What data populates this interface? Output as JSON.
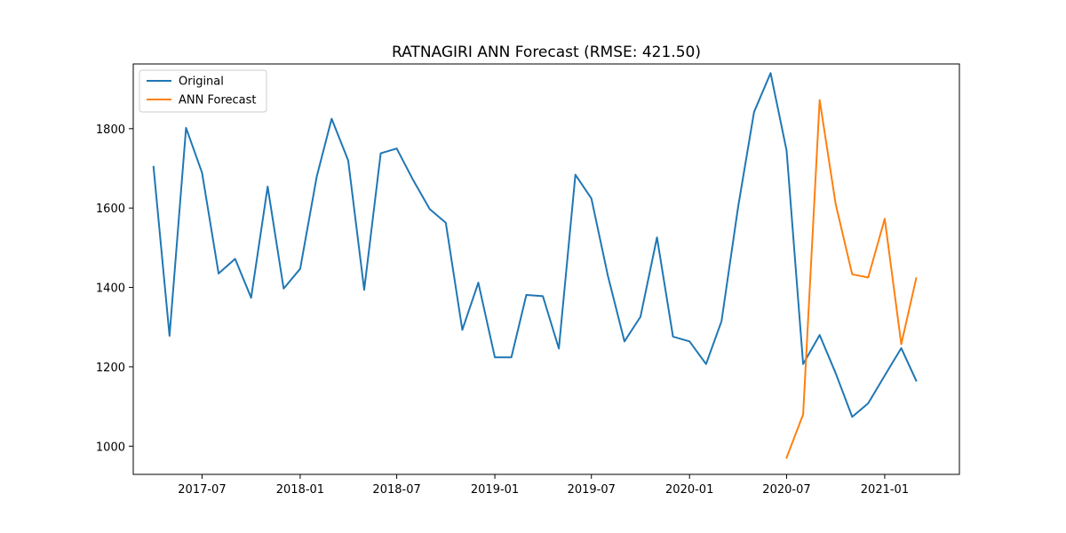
{
  "chart_data": {
    "type": "line",
    "title": "RATNAGIRI ANN Forecast (RMSE: 421.50)",
    "xlabel": "",
    "ylabel": "",
    "x_tick_labels": [
      "2017-07",
      "2018-01",
      "2018-07",
      "2019-01",
      "2019-07",
      "2020-01",
      "2020-07",
      "2021-01"
    ],
    "y_ticks": [
      1000,
      1200,
      1400,
      1600,
      1800
    ],
    "xlim": [
      "2017-02-22",
      "2021-05-21"
    ],
    "ylim": [
      929,
      1963
    ],
    "grid": false,
    "legend_position": "top-left",
    "series": [
      {
        "name": "Original",
        "color": "#1f77b4",
        "x": [
          "2017-04-01",
          "2017-05-01",
          "2017-06-01",
          "2017-07-01",
          "2017-08-01",
          "2017-09-01",
          "2017-10-01",
          "2017-11-01",
          "2017-12-01",
          "2018-01-01",
          "2018-02-01",
          "2018-03-01",
          "2018-04-01",
          "2018-05-01",
          "2018-06-01",
          "2018-07-01",
          "2018-08-01",
          "2018-09-01",
          "2018-10-01",
          "2018-11-01",
          "2018-12-01",
          "2019-01-01",
          "2019-02-01",
          "2019-03-01",
          "2019-04-01",
          "2019-05-01",
          "2019-06-01",
          "2019-07-01",
          "2019-08-01",
          "2019-09-01",
          "2019-10-01",
          "2019-11-01",
          "2019-12-01",
          "2020-01-01",
          "2020-02-01",
          "2020-03-01",
          "2020-04-01",
          "2020-05-01",
          "2020-06-01",
          "2020-07-01",
          "2020-08-01",
          "2020-09-01",
          "2020-10-01",
          "2020-11-01",
          "2020-12-01",
          "2021-01-01",
          "2021-02-01",
          "2021-03-01"
        ],
        "y": [
          1704,
          1278,
          1802,
          1689,
          1435,
          1472,
          1374,
          1654,
          1397,
          1447,
          1679,
          1825,
          1720,
          1394,
          1738,
          1750,
          1670,
          1597,
          1563,
          1293,
          1412,
          1224,
          1224,
          1381,
          1378,
          1246,
          1684,
          1624,
          1429,
          1264,
          1326,
          1526,
          1276,
          1264,
          1207,
          1315,
          1602,
          1842,
          1940,
          1745,
          1207,
          1280,
          1184,
          1074,
          1108,
          1178,
          1247,
          1165
        ]
      },
      {
        "name": "ANN Forecast",
        "color": "#ff7f0e",
        "x": [
          "2020-07-01",
          "2020-08-01",
          "2020-09-01",
          "2020-10-01",
          "2020-11-01",
          "2020-12-01",
          "2021-01-01",
          "2021-02-01",
          "2021-03-01"
        ],
        "y": [
          971,
          1080,
          1872,
          1610,
          1433,
          1425,
          1573,
          1257,
          1423
        ]
      }
    ]
  }
}
